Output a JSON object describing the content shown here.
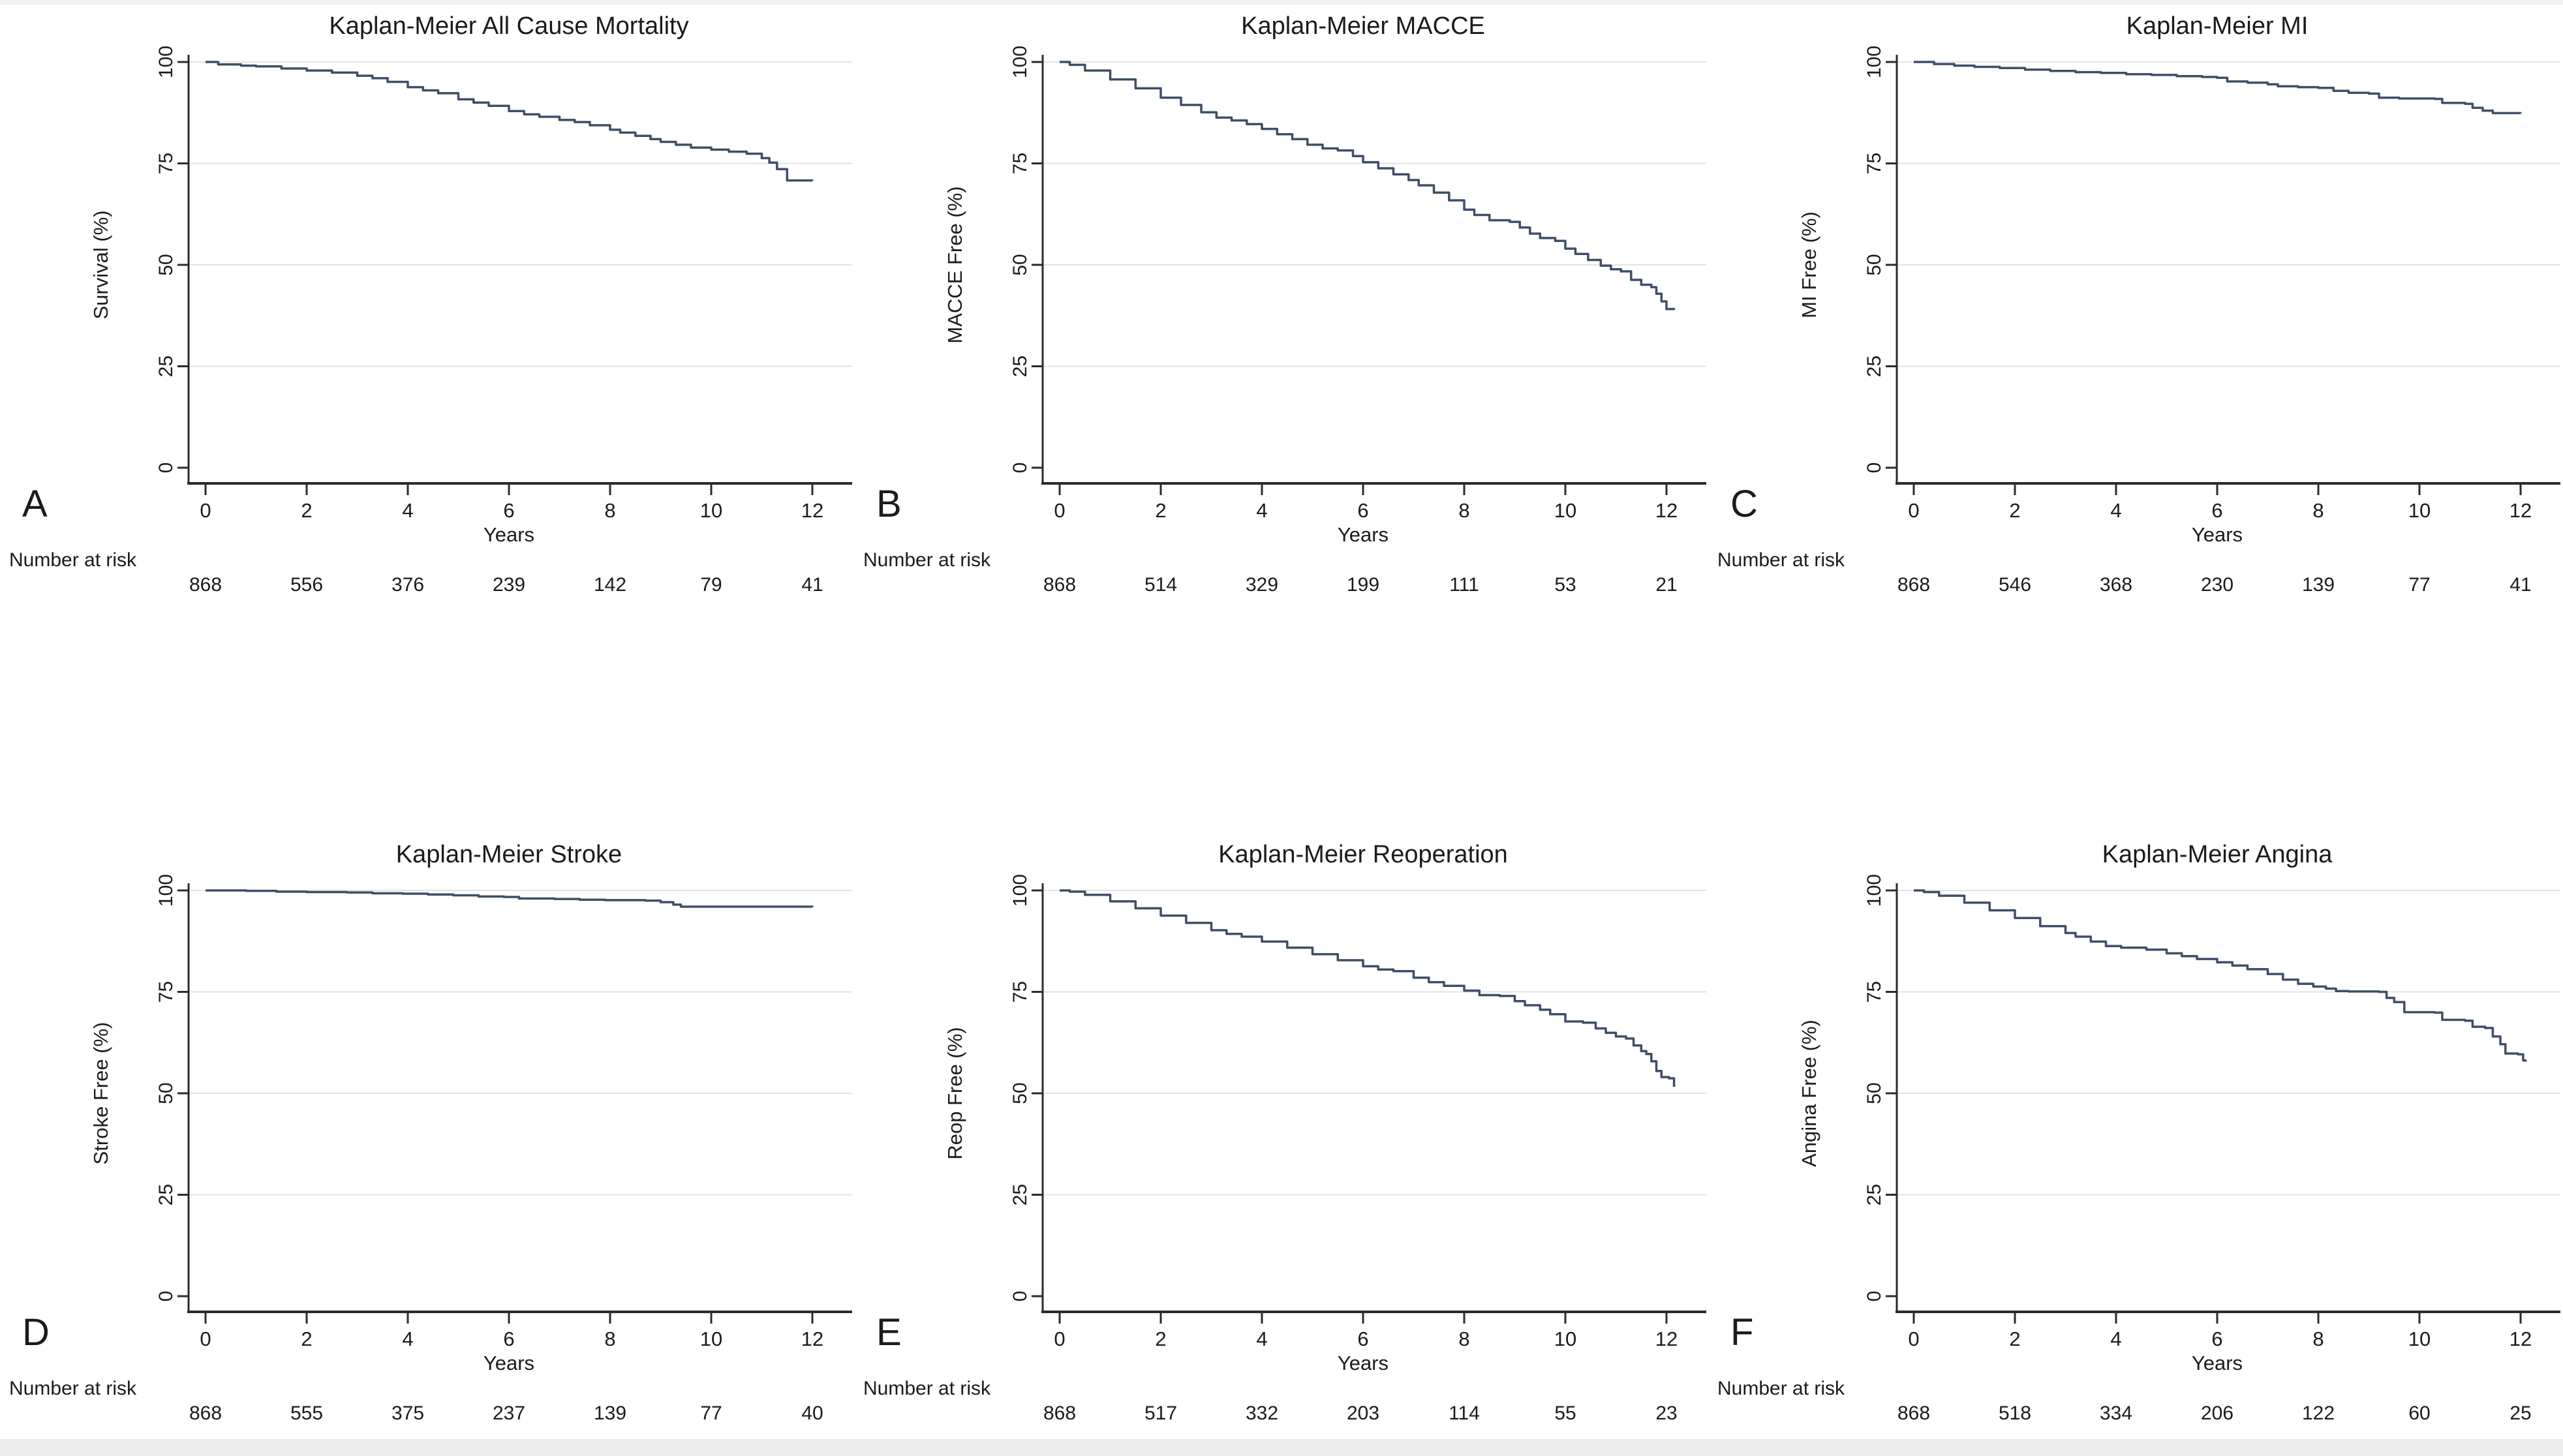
{
  "figure": {
    "curve_color": "#3f4e68",
    "axis_color": "#2b2b2b",
    "grid_color": "#e3e3e5",
    "text_color": "#1b1b1b",
    "xlabel": "Years",
    "risk_label": "Number at risk",
    "xticks": [
      0,
      2,
      4,
      6,
      8,
      10,
      12
    ],
    "yticks": [
      0,
      25,
      50,
      75,
      100
    ]
  },
  "chart_data": [
    {
      "letter": "A",
      "type": "line",
      "title": "Kaplan-Meier All Cause Mortality",
      "ylabel": "Survival (%)",
      "xlabel": "Years",
      "xlim": [
        0,
        12.4
      ],
      "ylim": [
        0,
        100
      ],
      "xticks": [
        0,
        2,
        4,
        6,
        8,
        10,
        12
      ],
      "yticks": [
        0,
        25,
        50,
        75,
        100
      ],
      "grid": "horizontal",
      "legend": "none",
      "number_at_risk": [
        868,
        556,
        376,
        239,
        142,
        79,
        41
      ],
      "points": [
        [
          0,
          100
        ],
        [
          0.25,
          99.4
        ],
        [
          0.7,
          99.1
        ],
        [
          1,
          98.9
        ],
        [
          1.5,
          98.4
        ],
        [
          2,
          97.9
        ],
        [
          2.5,
          97.4
        ],
        [
          3,
          96.6
        ],
        [
          3.3,
          96
        ],
        [
          3.6,
          95.1
        ],
        [
          4,
          93.8
        ],
        [
          4.3,
          93
        ],
        [
          4.6,
          92.3
        ],
        [
          5,
          90.8
        ],
        [
          5.3,
          90
        ],
        [
          5.6,
          89.2
        ],
        [
          6,
          87.9
        ],
        [
          6.3,
          87.1
        ],
        [
          6.6,
          86.5
        ],
        [
          7,
          85.7
        ],
        [
          7.3,
          85.2
        ],
        [
          7.6,
          84.4
        ],
        [
          8,
          83.3
        ],
        [
          8.2,
          82.6
        ],
        [
          8.5,
          81.8
        ],
        [
          8.8,
          81
        ],
        [
          9,
          80.3
        ],
        [
          9.3,
          79.6
        ],
        [
          9.6,
          78.9
        ],
        [
          10,
          78.4
        ],
        [
          10.35,
          77.9
        ],
        [
          10.7,
          77.4
        ],
        [
          11,
          76.3
        ],
        [
          11.15,
          75.2
        ],
        [
          11.3,
          73.6
        ],
        [
          11.5,
          70.8
        ],
        [
          12,
          70.7
        ]
      ]
    },
    {
      "letter": "B",
      "type": "line",
      "title": "Kaplan-Meier MACCE",
      "ylabel": "MACCE Free (%)",
      "xlabel": "Years",
      "xlim": [
        0,
        12.4
      ],
      "ylim": [
        0,
        100
      ],
      "xticks": [
        0,
        2,
        4,
        6,
        8,
        10,
        12
      ],
      "yticks": [
        0,
        25,
        50,
        75,
        100
      ],
      "grid": "horizontal",
      "legend": "none",
      "number_at_risk": [
        868,
        514,
        329,
        199,
        111,
        53,
        21
      ],
      "points": [
        [
          0,
          100
        ],
        [
          0.2,
          99.3
        ],
        [
          0.5,
          97.9
        ],
        [
          1,
          95.7
        ],
        [
          1.5,
          93.5
        ],
        [
          2,
          91.2
        ],
        [
          2.4,
          89.4
        ],
        [
          2.8,
          87.6
        ],
        [
          3.1,
          86.3
        ],
        [
          3.4,
          85.6
        ],
        [
          3.7,
          84.7
        ],
        [
          4,
          83.5
        ],
        [
          4.3,
          82.2
        ],
        [
          4.6,
          81
        ],
        [
          4.9,
          79.6
        ],
        [
          5.2,
          78.7
        ],
        [
          5.5,
          78.2
        ],
        [
          5.8,
          76.8
        ],
        [
          6,
          75.3
        ],
        [
          6.3,
          73.8
        ],
        [
          6.6,
          72.3
        ],
        [
          6.9,
          70.9
        ],
        [
          7.1,
          69.6
        ],
        [
          7.4,
          67.8
        ],
        [
          7.7,
          65.9
        ],
        [
          8,
          63.6
        ],
        [
          8.2,
          62.3
        ],
        [
          8.5,
          61
        ],
        [
          8.9,
          60.6
        ],
        [
          9.1,
          59.2
        ],
        [
          9.3,
          57.7
        ],
        [
          9.5,
          56.6
        ],
        [
          9.8,
          55.9
        ],
        [
          10,
          54
        ],
        [
          10.2,
          52.7
        ],
        [
          10.45,
          51.2
        ],
        [
          10.7,
          49.8
        ],
        [
          10.9,
          48.9
        ],
        [
          11.1,
          48.4
        ],
        [
          11.3,
          46.3
        ],
        [
          11.5,
          45.1
        ],
        [
          11.7,
          44.5
        ],
        [
          11.8,
          42.9
        ],
        [
          11.9,
          41
        ],
        [
          12,
          39.1
        ],
        [
          12.15,
          38.9
        ]
      ]
    },
    {
      "letter": "C",
      "type": "line",
      "title": "Kaplan-Meier MI",
      "ylabel": "MI Free (%)",
      "xlabel": "Years",
      "xlim": [
        0,
        12.4
      ],
      "ylim": [
        0,
        100
      ],
      "xticks": [
        0,
        2,
        4,
        6,
        8,
        10,
        12
      ],
      "yticks": [
        0,
        25,
        50,
        75,
        100
      ],
      "grid": "horizontal",
      "legend": "none",
      "number_at_risk": [
        868,
        546,
        368,
        230,
        139,
        77,
        41
      ],
      "points": [
        [
          0,
          100
        ],
        [
          0.4,
          99.5
        ],
        [
          0.8,
          99.1
        ],
        [
          1.2,
          98.8
        ],
        [
          1.7,
          98.5
        ],
        [
          2.2,
          98.1
        ],
        [
          2.7,
          97.8
        ],
        [
          3.2,
          97.5
        ],
        [
          3.7,
          97.3
        ],
        [
          4.2,
          97
        ],
        [
          4.7,
          96.8
        ],
        [
          5.2,
          96.5
        ],
        [
          5.7,
          96.3
        ],
        [
          6,
          96.1
        ],
        [
          6.2,
          95.2
        ],
        [
          6.6,
          94.9
        ],
        [
          7,
          94.5
        ],
        [
          7.2,
          94
        ],
        [
          7.6,
          93.8
        ],
        [
          8,
          93.6
        ],
        [
          8.3,
          92.9
        ],
        [
          8.6,
          92.4
        ],
        [
          9,
          92.2
        ],
        [
          9.2,
          91.2
        ],
        [
          9.6,
          91
        ],
        [
          10.3,
          90.9
        ],
        [
          10.45,
          89.9
        ],
        [
          10.9,
          89.7
        ],
        [
          11.05,
          88.7
        ],
        [
          11.25,
          88
        ],
        [
          11.45,
          87.4
        ],
        [
          12,
          87.3
        ]
      ]
    },
    {
      "letter": "D",
      "type": "line",
      "title": "Kaplan-Meier Stroke",
      "ylabel": "Stroke Free (%)",
      "xlabel": "Years",
      "xlim": [
        0,
        12.4
      ],
      "ylim": [
        0,
        100
      ],
      "xticks": [
        0,
        2,
        4,
        6,
        8,
        10,
        12
      ],
      "yticks": [
        0,
        25,
        50,
        75,
        100
      ],
      "grid": "horizontal",
      "legend": "none",
      "number_at_risk": [
        868,
        555,
        375,
        237,
        139,
        77,
        40
      ],
      "points": [
        [
          0,
          100
        ],
        [
          0.8,
          99.9
        ],
        [
          1.4,
          99.7
        ],
        [
          2,
          99.6
        ],
        [
          2.8,
          99.5
        ],
        [
          3.3,
          99.3
        ],
        [
          3.9,
          99.2
        ],
        [
          4.4,
          99
        ],
        [
          4.9,
          98.8
        ],
        [
          5.4,
          98.5
        ],
        [
          5.9,
          98.4
        ],
        [
          6.2,
          98
        ],
        [
          6.9,
          97.9
        ],
        [
          7.4,
          97.7
        ],
        [
          7.9,
          97.6
        ],
        [
          8.7,
          97.5
        ],
        [
          9,
          97.1
        ],
        [
          9.25,
          96.5
        ],
        [
          9.4,
          96
        ],
        [
          12,
          95.9
        ]
      ]
    },
    {
      "letter": "E",
      "type": "line",
      "title": "Kaplan-Meier Reoperation",
      "ylabel": "Reop Free (%)",
      "xlabel": "Years",
      "xlim": [
        0,
        12.4
      ],
      "ylim": [
        0,
        100
      ],
      "xticks": [
        0,
        2,
        4,
        6,
        8,
        10,
        12
      ],
      "yticks": [
        0,
        25,
        50,
        75,
        100
      ],
      "grid": "horizontal",
      "legend": "none",
      "number_at_risk": [
        868,
        517,
        332,
        203,
        114,
        55,
        23
      ],
      "points": [
        [
          0,
          100
        ],
        [
          0.2,
          99.7
        ],
        [
          0.5,
          98.9
        ],
        [
          1,
          97.3
        ],
        [
          1.5,
          95.6
        ],
        [
          2,
          93.8
        ],
        [
          2.5,
          92
        ],
        [
          3,
          90.2
        ],
        [
          3.3,
          89.3
        ],
        [
          3.6,
          88.6
        ],
        [
          4,
          87.4
        ],
        [
          4.5,
          85.9
        ],
        [
          5,
          84.3
        ],
        [
          5.5,
          82.8
        ],
        [
          6,
          81.3
        ],
        [
          6.3,
          80.5
        ],
        [
          6.6,
          80.1
        ],
        [
          7,
          78.5
        ],
        [
          7.3,
          77.4
        ],
        [
          7.6,
          76.5
        ],
        [
          8,
          75.3
        ],
        [
          8.3,
          74.2
        ],
        [
          8.7,
          74
        ],
        [
          9,
          72.7
        ],
        [
          9.2,
          71.7
        ],
        [
          9.5,
          70.6
        ],
        [
          9.7,
          69.5
        ],
        [
          10,
          67.7
        ],
        [
          10.35,
          67.4
        ],
        [
          10.6,
          66
        ],
        [
          10.8,
          64.9
        ],
        [
          11,
          64
        ],
        [
          11.2,
          63.5
        ],
        [
          11.35,
          61.8
        ],
        [
          11.5,
          60.4
        ],
        [
          11.6,
          59.7
        ],
        [
          11.7,
          57.9
        ],
        [
          11.8,
          55.5
        ],
        [
          11.9,
          54
        ],
        [
          12.05,
          53.7
        ],
        [
          12.15,
          51.6
        ]
      ]
    },
    {
      "letter": "F",
      "type": "line",
      "title": "Kaplan-Meier Angina",
      "ylabel": "Angina Free (%)",
      "xlabel": "Years",
      "xlim": [
        0,
        12.4
      ],
      "ylim": [
        0,
        100
      ],
      "xticks": [
        0,
        2,
        4,
        6,
        8,
        10,
        12
      ],
      "yticks": [
        0,
        25,
        50,
        75,
        100
      ],
      "grid": "horizontal",
      "legend": "none",
      "number_at_risk": [
        868,
        518,
        334,
        206,
        122,
        60,
        25
      ],
      "points": [
        [
          0,
          100
        ],
        [
          0.2,
          99.6
        ],
        [
          0.5,
          98.7
        ],
        [
          1,
          97
        ],
        [
          1.5,
          95.1
        ],
        [
          2,
          93.2
        ],
        [
          2.5,
          91.2
        ],
        [
          3,
          89.5
        ],
        [
          3.2,
          88.6
        ],
        [
          3.5,
          87.4
        ],
        [
          3.8,
          86.3
        ],
        [
          4.1,
          85.9
        ],
        [
          4.6,
          85.4
        ],
        [
          5,
          84.5
        ],
        [
          5.3,
          83.8
        ],
        [
          5.6,
          83.1
        ],
        [
          6,
          82.3
        ],
        [
          6.3,
          81.5
        ],
        [
          6.6,
          80.6
        ],
        [
          7,
          79.4
        ],
        [
          7.3,
          78
        ],
        [
          7.6,
          77
        ],
        [
          7.9,
          76.3
        ],
        [
          8.15,
          75.8
        ],
        [
          8.35,
          75.2
        ],
        [
          8.6,
          75.1
        ],
        [
          9.2,
          75
        ],
        [
          9.35,
          73.5
        ],
        [
          9.5,
          72.5
        ],
        [
          9.7,
          70
        ],
        [
          10.3,
          69.9
        ],
        [
          10.45,
          68.1
        ],
        [
          10.9,
          67.9
        ],
        [
          11.05,
          66.4
        ],
        [
          11.3,
          66.1
        ],
        [
          11.45,
          64
        ],
        [
          11.6,
          62.1
        ],
        [
          11.7,
          59.8
        ],
        [
          11.95,
          59.6
        ],
        [
          12.05,
          58.1
        ],
        [
          12.1,
          57.8
        ]
      ]
    }
  ]
}
